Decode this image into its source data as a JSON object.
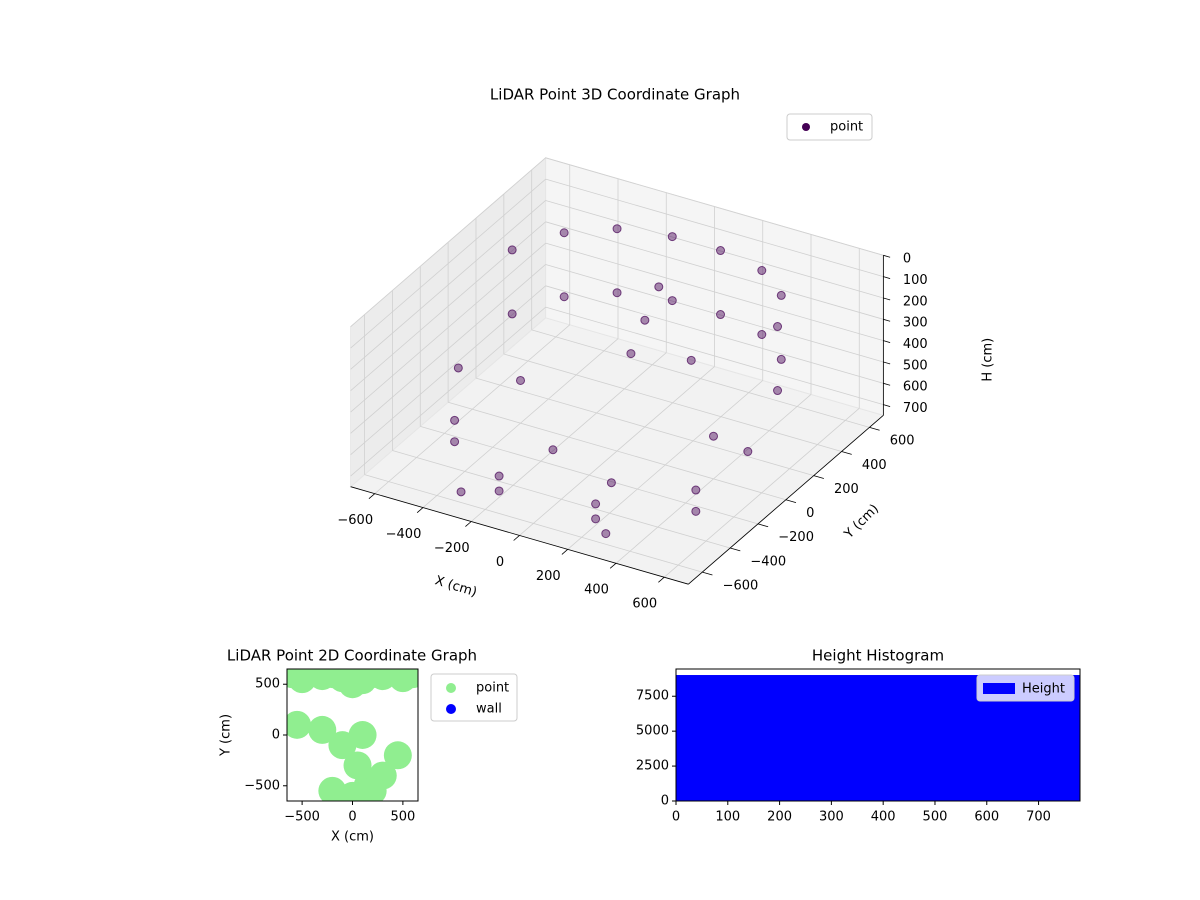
{
  "chart_data": [
    {
      "type": "scatter3d",
      "title": "LiDAR Point 3D Coordinate Graph",
      "xlabel": "X (cm)",
      "ylabel": "Y (cm)",
      "zlabel": "H (cm)",
      "xlim": [
        -700,
        700
      ],
      "ylim": [
        -700,
        700
      ],
      "zlim": [
        750,
        0
      ],
      "xticks": [
        {
          "value": -600,
          "label": "−600"
        },
        {
          "value": -400,
          "label": "−400"
        },
        {
          "value": -200,
          "label": "−200"
        },
        0,
        200,
        400,
        600
      ],
      "yticks": [
        {
          "value": -600,
          "label": "−600"
        },
        {
          "value": -400,
          "label": "−400"
        },
        {
          "value": -200,
          "label": "−200"
        },
        0,
        200,
        400,
        600
      ],
      "zticks": [
        0,
        100,
        200,
        300,
        400,
        500,
        600,
        700
      ],
      "legend": "upper right",
      "series": [
        {
          "name": "point",
          "color": "#440154",
          "x": [
            -550,
            -450,
            -300,
            -100,
            100,
            300,
            450,
            550,
            -550,
            -450,
            -300,
            -100,
            100,
            300,
            450,
            550,
            -500,
            -200,
            200,
            500,
            -500,
            -200,
            200,
            500,
            0,
            0,
            0,
            -600,
            -300,
            300,
            600,
            -400,
            400,
            -150,
            150,
            250
          ],
          "y": [
            200,
            400,
            520,
            570,
            570,
            520,
            400,
            200,
            200,
            400,
            520,
            570,
            570,
            520,
            400,
            200,
            -300,
            -500,
            -500,
            -300,
            -300,
            -500,
            -500,
            -300,
            300,
            200,
            100,
            -100,
            -600,
            -600,
            -100,
            0,
            0,
            -200,
            -300,
            100
          ],
          "z": [
            100,
            100,
            100,
            100,
            100,
            100,
            100,
            100,
            400,
            400,
            400,
            400,
            400,
            400,
            400,
            400,
            600,
            650,
            650,
            600,
            700,
            720,
            720,
            700,
            150,
            250,
            350,
            500,
            700,
            700,
            500,
            550,
            550,
            680,
            680,
            300
          ]
        }
      ]
    },
    {
      "type": "scatter",
      "title": "LiDAR Point 2D Coordinate Graph",
      "xlabel": "X (cm)",
      "ylabel": "Y (cm)",
      "xlim": [
        -650,
        650
      ],
      "ylim": [
        -650,
        650
      ],
      "xticks": [
        {
          "value": -500,
          "label": "−500"
        },
        0,
        500
      ],
      "yticks": [
        {
          "value": -500,
          "label": "−500"
        },
        0,
        500
      ],
      "legend": "outside right",
      "series": [
        {
          "name": "point",
          "color": "#90ee90",
          "x": [
            -600,
            -500,
            -400,
            -300,
            -200,
            -100,
            0,
            100,
            200,
            300,
            400,
            500,
            600,
            -550,
            -300,
            -100,
            50,
            150,
            300,
            450,
            -200,
            0,
            200,
            100
          ],
          "y": [
            600,
            550,
            620,
            580,
            600,
            560,
            500,
            540,
            600,
            580,
            620,
            560,
            600,
            100,
            50,
            -100,
            -300,
            -500,
            -400,
            -200,
            -550,
            -600,
            -550,
            0
          ]
        },
        {
          "name": "wall",
          "color": "#0000ff",
          "x": [],
          "y": []
        }
      ]
    },
    {
      "type": "histogram",
      "title": "Height Histogram",
      "name": "Height",
      "color": "#0000ff",
      "bins": [
        0,
        130,
        260,
        390,
        520,
        650,
        780
      ],
      "counts": [
        9000,
        9000,
        9000,
        9000,
        9000,
        9000
      ],
      "xlim": [
        0,
        780
      ],
      "ylim": [
        0,
        9450
      ],
      "xticks": [
        0,
        100,
        200,
        300,
        400,
        500,
        600,
        700
      ],
      "yticks": [
        0,
        2500,
        5000,
        7500
      ],
      "legend": "upper right"
    }
  ]
}
